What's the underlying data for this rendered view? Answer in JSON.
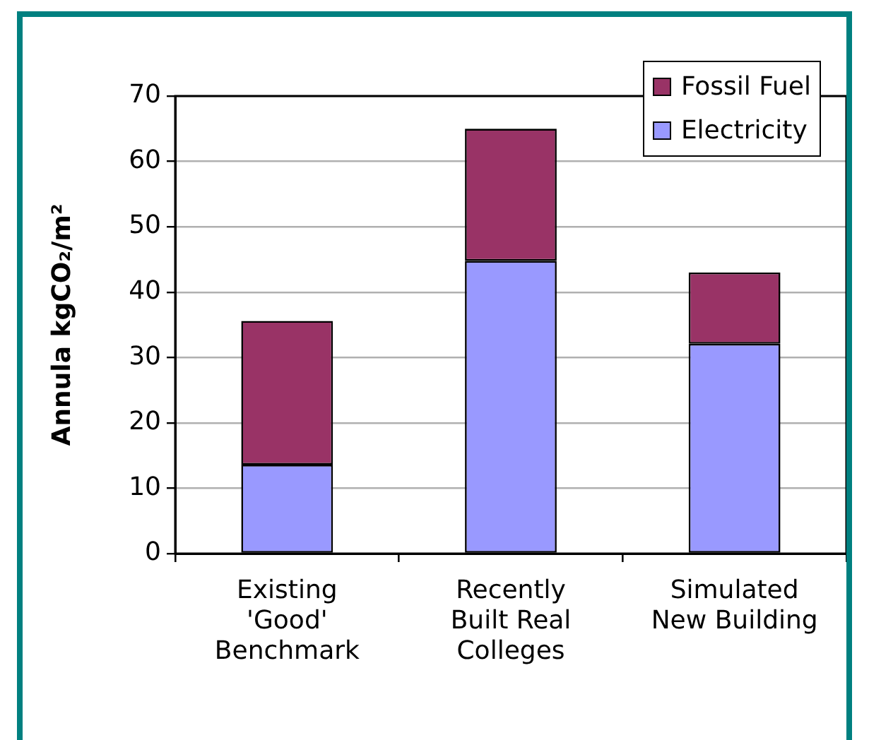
{
  "chart_data": {
    "type": "bar",
    "stacked": true,
    "ylabel": "Annula kgCO₂/m²",
    "categories": [
      "Existing 'Good' Benchmark",
      "Recently Built Real Colleges",
      "Simulated New Building"
    ],
    "series": [
      {
        "name": "Electricity",
        "color": "#9999ff",
        "values": [
          13.6,
          44.8,
          32.1
        ]
      },
      {
        "name": "Fossil Fuel",
        "color": "#993366",
        "values": [
          22.0,
          20.2,
          10.9
        ]
      }
    ],
    "ylim": [
      0,
      70
    ],
    "yticks": [
      0,
      10,
      20,
      30,
      40,
      50,
      60,
      70
    ],
    "grid": "y",
    "legend": "top right"
  }
}
